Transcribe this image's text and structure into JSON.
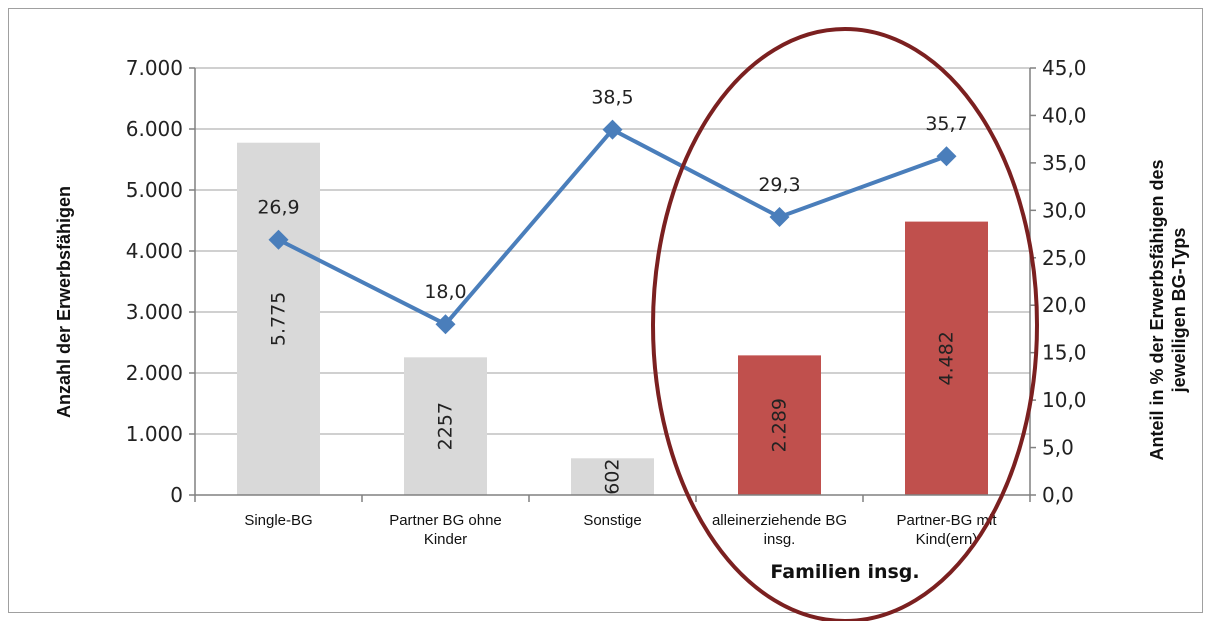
{
  "chart_data": {
    "type": "bar+line",
    "categories": [
      "Single-BG",
      "Partner BG ohne Kinder",
      "Sonstige",
      "alleinerziehende BG insg.",
      "Partner-BG mit Kind(ern)"
    ],
    "bar_values": [
      5775,
      2257,
      602,
      2289,
      4482
    ],
    "bar_labels": [
      "5.775",
      "2257",
      "602",
      "2.289",
      "4.482"
    ],
    "line_values": [
      26.9,
      18.0,
      38.5,
      29.3,
      35.7
    ],
    "line_labels": [
      "26,9",
      "18,0",
      "38,5",
      "29,3",
      "35,7"
    ],
    "y_left": {
      "label": "Anzahl der Erwerbsfähigen",
      "range": [
        0,
        7000
      ],
      "ticks": [
        "0",
        "1.000",
        "2.000",
        "3.000",
        "4.000",
        "5.000",
        "6.000",
        "7.000"
      ]
    },
    "y_right": {
      "label_line1": "Anteil in % der Erwerbsfähigen des",
      "label_line2": "jeweiligen BG-Typs",
      "range": [
        0,
        45
      ],
      "ticks": [
        "0,0",
        "5,0",
        "10,0",
        "15,0",
        "20,0",
        "25,0",
        "30,0",
        "35,0",
        "40,0",
        "45,0"
      ]
    },
    "category_lines": [
      [
        "Single-BG"
      ],
      [
        "Partner BG ohne",
        "Kinder"
      ],
      [
        "Sonstige"
      ],
      [
        "alleinerziehende BG",
        "insg."
      ],
      [
        "Partner-BG mit",
        "Kind(ern)"
      ]
    ],
    "group_annotation": "Familien insg.",
    "grid": true,
    "colors": {
      "bar_gray": "#d9d9d9",
      "bar_highlight": "#c0504d",
      "line": "#4a7ebb",
      "marker": "#4a7ebb",
      "ellipse": "#7b2020",
      "grid": "#c0c0c0"
    },
    "highlighted_categories": [
      3,
      4
    ]
  }
}
